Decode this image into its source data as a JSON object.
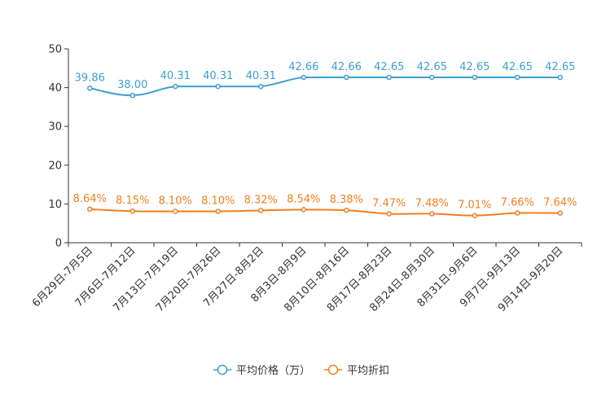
{
  "chart_data": {
    "type": "line",
    "title": "",
    "xlabel": "",
    "ylabel": "",
    "ylim": [
      0,
      50
    ],
    "yticks": [
      0,
      10,
      20,
      30,
      40,
      50
    ],
    "grid": false,
    "legend_position": "bottom-center",
    "categories": [
      "6月29日-7月5日",
      "7月6日-7月12日",
      "7月13日-7月19日",
      "7月20日-7月26日",
      "7月27日-8月2日",
      "8月3日-8月9日",
      "8月10日-8月16日",
      "8月17日-8月23日",
      "8月24日-8月30日",
      "8月31日-9月6日",
      "9月7日-9月13日",
      "9月14日-9月20日"
    ],
    "series": [
      {
        "name": "平均价格（万）",
        "color": "#3a9fd0",
        "values": [
          39.86,
          38.0,
          40.31,
          40.31,
          40.31,
          42.66,
          42.66,
          42.65,
          42.65,
          42.65,
          42.65,
          42.65
        ],
        "labels": [
          "39.86",
          "38.00",
          "40.31",
          "40.31",
          "40.31",
          "42.66",
          "42.66",
          "42.65",
          "42.65",
          "42.65",
          "42.65",
          "42.65"
        ]
      },
      {
        "name": "平均折扣",
        "color": "#f07f1d",
        "values": [
          8.64,
          8.15,
          8.1,
          8.1,
          8.32,
          8.54,
          8.38,
          7.47,
          7.48,
          7.01,
          7.66,
          7.64
        ],
        "labels": [
          "8.64%",
          "8.15%",
          "8.10%",
          "8.10%",
          "8.32%",
          "8.54%",
          "8.38%",
          "7.47%",
          "7.48%",
          "7.01%",
          "7.66%",
          "7.64%"
        ]
      }
    ]
  }
}
